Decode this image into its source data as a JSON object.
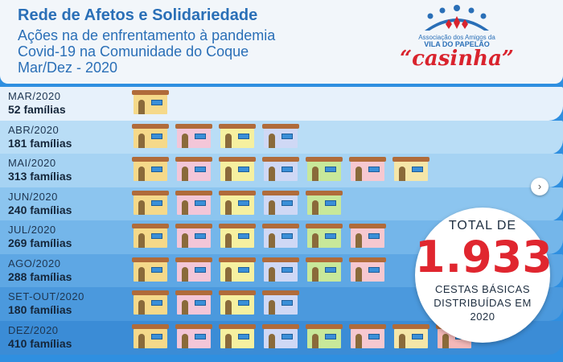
{
  "header": {
    "title": "Rede de Afetos e Solidariedade",
    "subtitle_lines": [
      "Ações na de enfrentamento à pandemia",
      "Covid-19 na Comunidade do Coque",
      "Mar/Dez - 2020"
    ]
  },
  "logo": {
    "line1": "Associação dos Amigos da",
    "line2": "VILA DO PAPELÃO",
    "name": "“casinha”"
  },
  "chart_data": {
    "type": "bar",
    "categories": [
      "MAR/2020",
      "ABR/2020",
      "MAI/2020",
      "JUN/2020",
      "JUL/2020",
      "AGO/2020",
      "SET-OUT/2020",
      "DEZ/2020"
    ],
    "labels": [
      "52 famílias",
      "181 famílias",
      "313 famílias",
      "240 famílias",
      "269 famílias",
      "288 famílias",
      "180 famílias",
      "410 famílias"
    ],
    "values": [
      52,
      181,
      313,
      240,
      269,
      288,
      180,
      410
    ],
    "house_counts": [
      1,
      4,
      7,
      5,
      6,
      6,
      4,
      8
    ],
    "unit": "famílias"
  },
  "colors": {
    "bands": [
      "#e7f1fb",
      "#b9ddf6",
      "#a6d3f3",
      "#8cc5ef",
      "#74b6ea",
      "#5ea7e4",
      "#4b99dd",
      "#3b8cd6"
    ],
    "walls": [
      "#f5d98a",
      "#f3c6d8",
      "#f6f0a0",
      "#cfd8f5",
      "#c8e89a",
      "#f6c8d0",
      "#f5e6a8",
      "#f4b8b8"
    ],
    "accent_red": "#e0262f"
  },
  "icons": {
    "house": "house-icon",
    "next": "chevron-right-icon"
  },
  "total": {
    "top": "TOTAL DE",
    "number": "1.933",
    "line1": "CESTAS BÁSICAS",
    "line2": "DISTRIBUÍDAS EM",
    "line3": "2020"
  }
}
